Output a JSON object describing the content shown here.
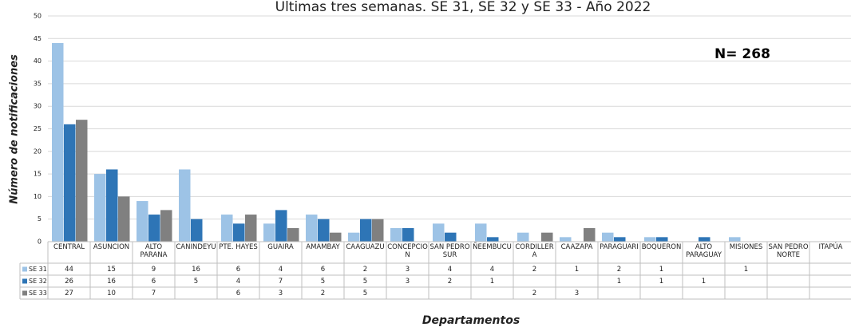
{
  "chart_data": {
    "type": "bar",
    "title": "Ultimas tres semanas. SE 31, SE 32 y SE 33 - Año 2022",
    "annotation": "N= 268",
    "y_label": "Número de notificaciones",
    "x_label": "Departamentos",
    "categories": [
      "CENTRAL",
      "ASUNCION",
      "ALTO PARANA",
      "CANINDEYU",
      "PTE. HAYES",
      "GUAIRA",
      "AMAMBAY",
      "CAAGUAZU",
      "CONCEPCION",
      "SAN PEDRO SUR",
      "ÑEEMBUCU",
      "CORDILLERA",
      "CAAZAPA",
      "PARAGUARI",
      "BOQUERON",
      "ALTO PARAGUAY",
      "MISIONES",
      "SAN PEDRO NORTE",
      "ITAPÚA"
    ],
    "series": [
      {
        "name": "SE 31",
        "color": "#9dc3e6",
        "values": [
          44,
          15,
          9,
          16,
          6,
          4,
          6,
          2,
          3,
          4,
          4,
          2,
          1,
          2,
          1,
          null,
          1,
          null,
          null
        ]
      },
      {
        "name": "SE 32",
        "color": "#2e75b6",
        "values": [
          26,
          16,
          6,
          5,
          4,
          7,
          5,
          5,
          3,
          2,
          1,
          null,
          null,
          1,
          1,
          1,
          null,
          null,
          null
        ]
      },
      {
        "name": "SE 33",
        "color": "#808080",
        "values": [
          27,
          10,
          7,
          null,
          6,
          3,
          2,
          5,
          null,
          null,
          null,
          2,
          3,
          null,
          null,
          null,
          null,
          null,
          null
        ]
      }
    ],
    "ylim": [
      0,
      50
    ],
    "yticks": [
      0,
      5,
      10,
      15,
      20,
      25,
      30,
      35,
      40,
      45,
      50
    ],
    "grid": true
  }
}
